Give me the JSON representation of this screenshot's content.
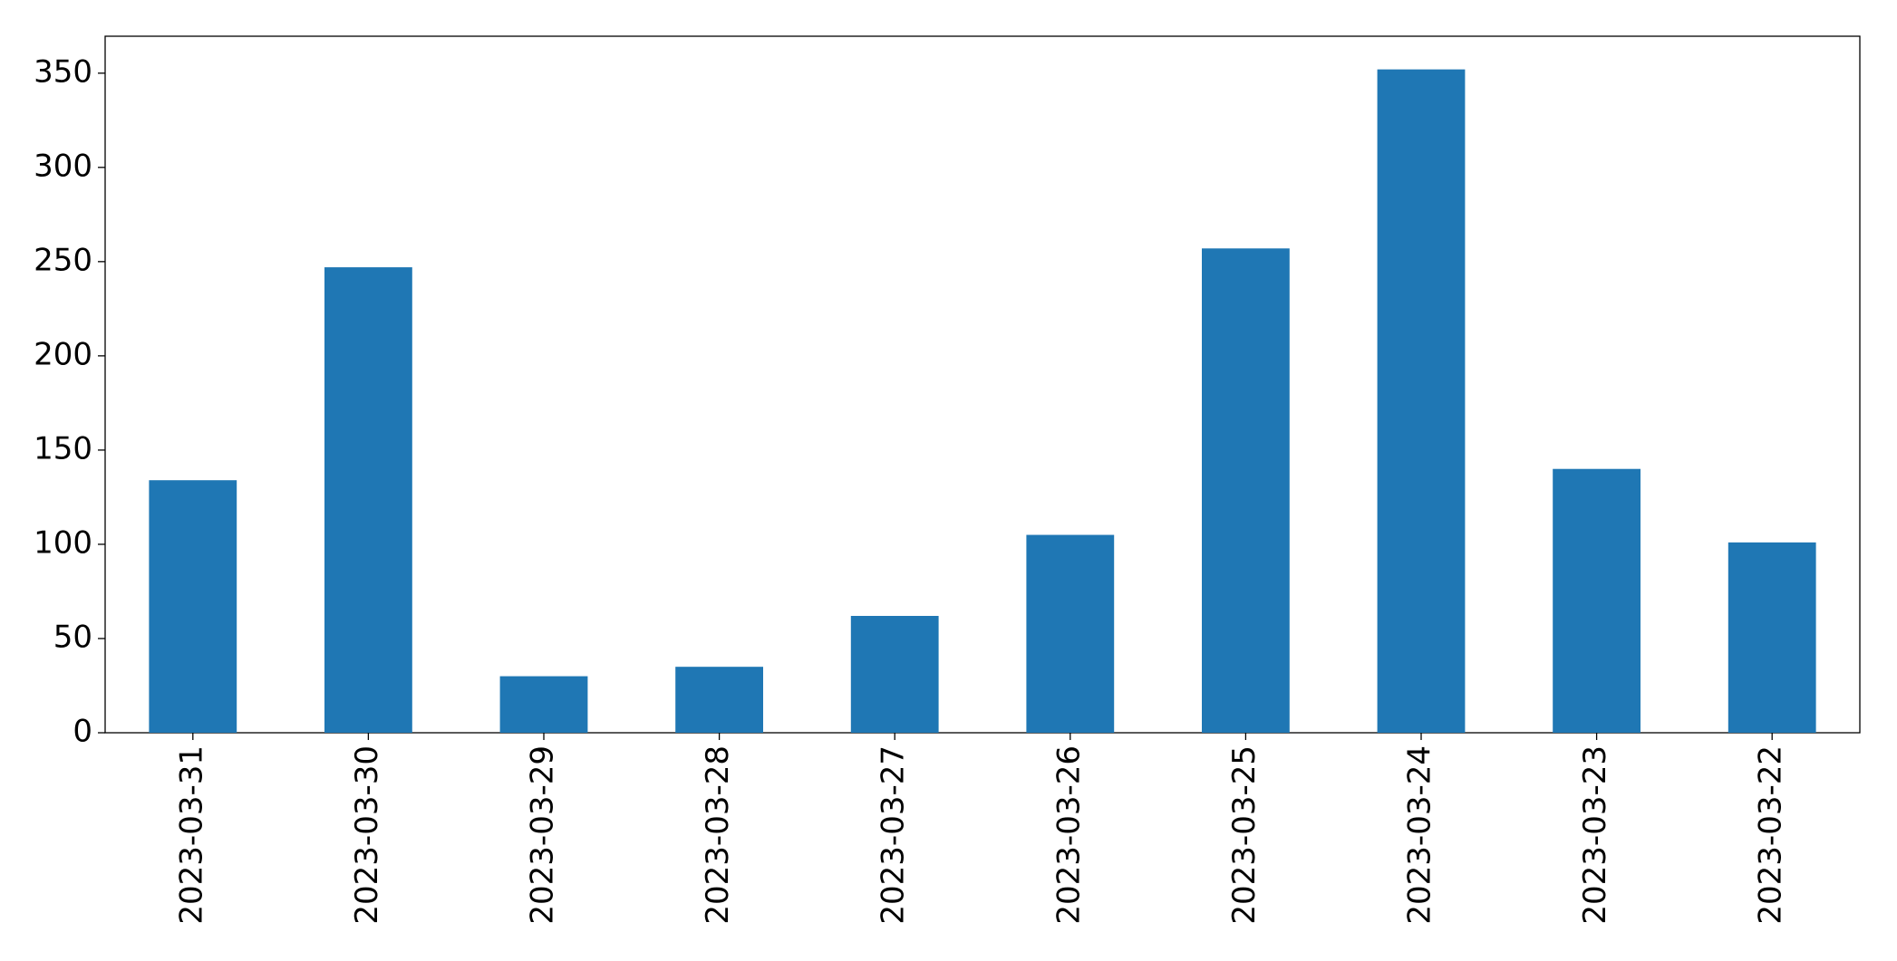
{
  "chart_data": {
    "type": "bar",
    "categories": [
      "2023-03-31",
      "2023-03-30",
      "2023-03-29",
      "2023-03-28",
      "2023-03-27",
      "2023-03-26",
      "2023-03-25",
      "2023-03-24",
      "2023-03-23",
      "2023-03-22"
    ],
    "values": [
      134,
      247,
      30,
      35,
      62,
      105,
      257,
      352,
      140,
      101
    ],
    "color": "#1f77b4",
    "ylim": [
      0,
      369.6
    ],
    "yticks": [
      0,
      50,
      100,
      150,
      200,
      250,
      300,
      350
    ],
    "grid": false
  }
}
